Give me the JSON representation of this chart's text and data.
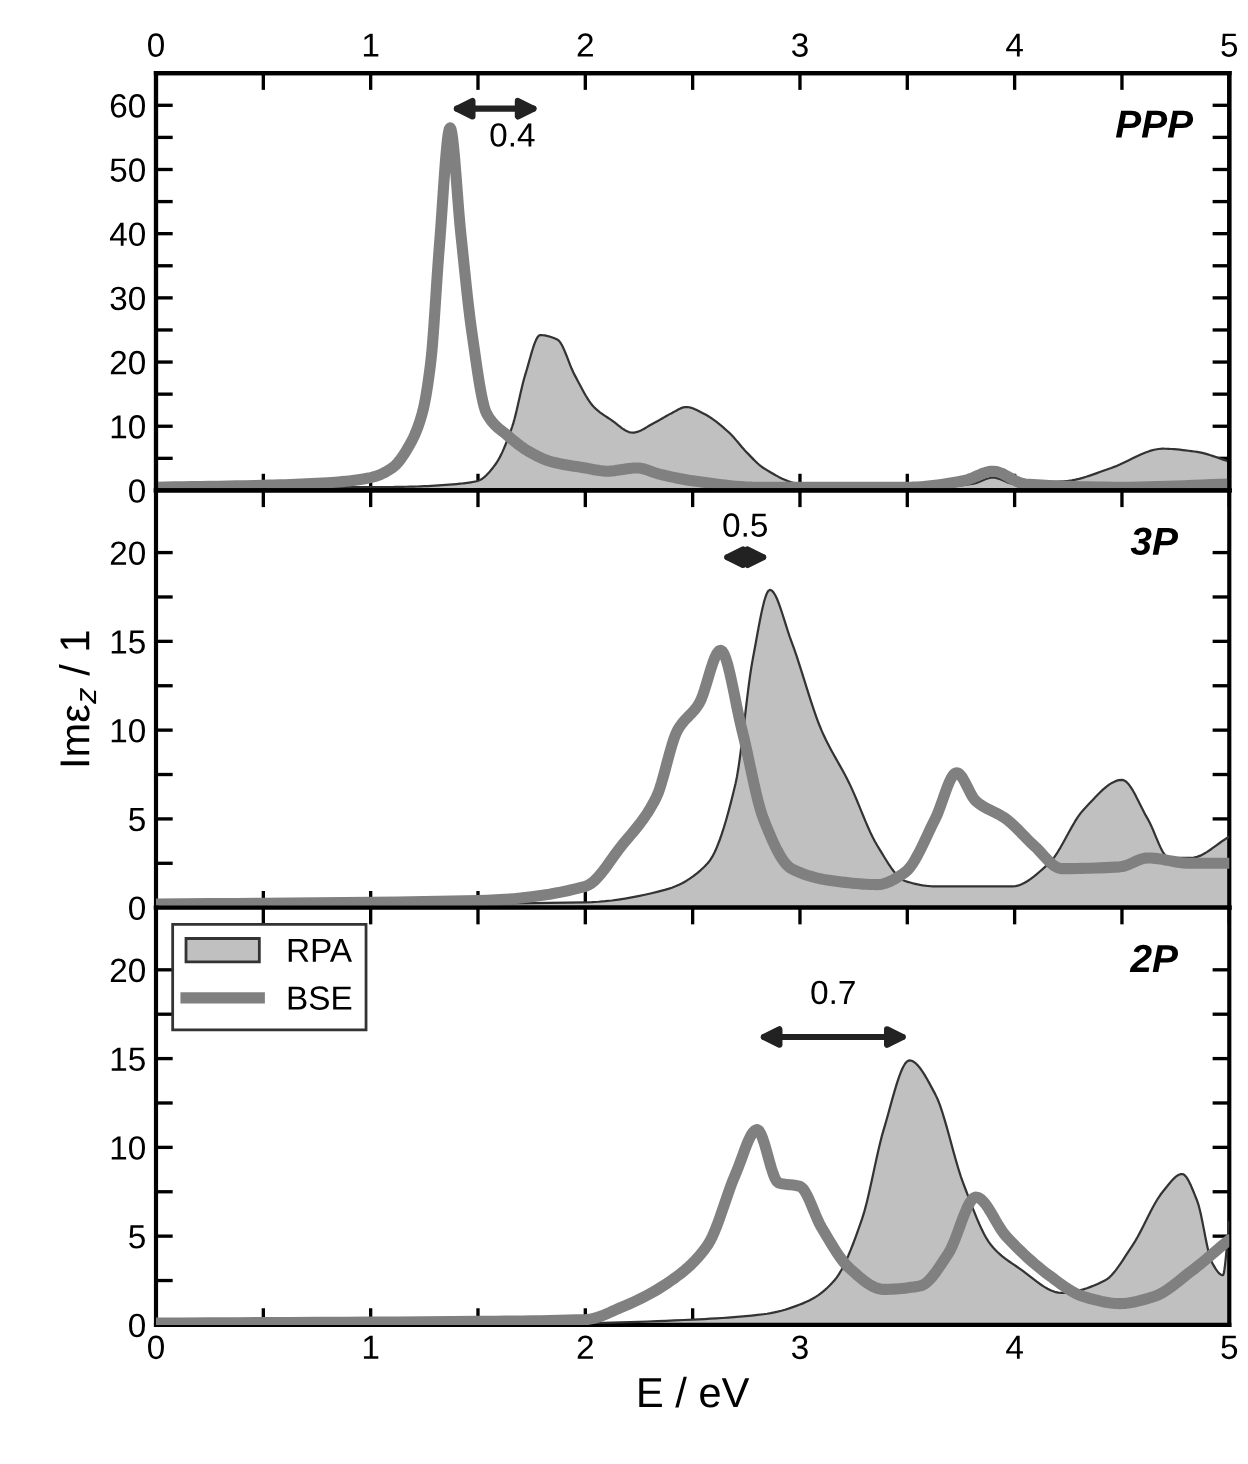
{
  "chart_data": [
    {
      "type": "area",
      "xlim": [
        0,
        5
      ],
      "ylim": [
        0,
        65
      ],
      "x2lim": [
        0,
        5
      ],
      "x2ticks": [
        0,
        {
          "value": 0.5,
          "label": null
        },
        1,
        {
          "value": 1.5,
          "label": null
        },
        2,
        {
          "value": 2.5,
          "label": null
        },
        3,
        {
          "value": 3.5,
          "label": null
        },
        4,
        {
          "value": 4.5,
          "label": null
        },
        5
      ],
      "xticks": [
        {
          "value": 0,
          "label": null
        },
        {
          "value": 0.5,
          "label": null
        },
        {
          "value": 1,
          "label": null
        },
        {
          "value": 1.5,
          "label": null
        },
        {
          "value": 2,
          "label": null
        },
        {
          "value": 2.5,
          "label": null
        },
        {
          "value": 3,
          "label": null
        },
        {
          "value": 3.5,
          "label": null
        },
        {
          "value": 4,
          "label": null
        },
        {
          "value": 4.5,
          "label": null
        },
        {
          "value": 5,
          "label": null
        }
      ],
      "yticks": [
        0,
        {
          "value": 5,
          "label": null
        },
        10,
        {
          "value": 15,
          "label": null
        },
        20,
        {
          "value": 25,
          "label": null
        },
        30,
        {
          "value": 35,
          "label": null
        },
        40,
        {
          "value": 45,
          "label": null
        },
        50,
        {
          "value": 55,
          "label": null
        },
        60
      ],
      "tick_labels": "y",
      "grid": false,
      "legend": false,
      "annotations": [
        "PPP",
        "0.4"
      ],
      "series": [
        {
          "color": "#c0c0c0",
          "x": [
            0,
            0.5,
            1.0,
            1.2,
            1.4,
            1.5,
            1.58,
            1.66,
            1.72,
            1.79,
            1.87,
            1.95,
            2.04,
            2.12,
            2.22,
            2.32,
            2.4,
            2.47,
            2.55,
            2.67,
            2.75,
            2.83,
            3.0,
            3.3,
            3.6,
            3.8,
            3.9,
            4.0,
            4.25,
            4.45,
            4.69,
            4.85,
            5.0
          ],
          "values": [
            0.5,
            0.5,
            0.5,
            0.6,
            1.0,
            1.5,
            4,
            10,
            18,
            24.2,
            23.5,
            18,
            13,
            11,
            9,
            10.5,
            12,
            13,
            12,
            9,
            6,
            3.5,
            1,
            0.5,
            0.5,
            1,
            2,
            1,
            1.5,
            3.5,
            6.5,
            6,
            4.5
          ]
        },
        {
          "type": "line",
          "color": "#808080",
          "x": [
            0,
            0.5,
            0.8,
            1.0,
            1.1,
            1.18,
            1.24,
            1.28,
            1.32,
            1.37,
            1.42,
            1.47,
            1.54,
            1.64,
            1.74,
            1.84,
            2.0,
            2.1,
            2.24,
            2.35,
            2.5,
            2.8,
            3.5,
            3.76,
            3.9,
            4.05,
            4.5,
            5.0
          ],
          "values": [
            0.5,
            0.8,
            1.2,
            2,
            3.5,
            7,
            12,
            20,
            38,
            56.5,
            40,
            25,
            12,
            8.5,
            6,
            4.5,
            3.5,
            3,
            3.5,
            2.5,
            1.5,
            0.5,
            0.5,
            1.5,
            3,
            1,
            0.5,
            1
          ]
        }
      ]
    },
    {
      "type": "area",
      "xlim": [
        0,
        5
      ],
      "ylim": [
        0,
        23.5
      ],
      "ylabel": "Imε$_{z}$ / 1",
      "xticks": [
        {
          "value": 0,
          "label": null
        },
        {
          "value": 0.5,
          "label": null
        },
        {
          "value": 1,
          "label": null
        },
        {
          "value": 1.5,
          "label": null
        },
        {
          "value": 2,
          "label": null
        },
        {
          "value": 2.5,
          "label": null
        },
        {
          "value": 3,
          "label": null
        },
        {
          "value": 3.5,
          "label": null
        },
        {
          "value": 4,
          "label": null
        },
        {
          "value": 4.5,
          "label": null
        },
        {
          "value": 5,
          "label": null
        }
      ],
      "yticks": [
        0,
        {
          "value": 2.5,
          "label": null
        },
        5,
        {
          "value": 7.5,
          "label": null
        },
        10,
        {
          "value": 12.5,
          "label": null
        },
        15,
        {
          "value": 17.5,
          "label": null
        },
        20
      ],
      "tick_labels": "y",
      "grid": false,
      "legend": false,
      "annotations": [
        "3P",
        "0.5"
      ],
      "series": [
        {
          "color": "#c0c0c0",
          "x": [
            0,
            1.0,
            2.0,
            2.37,
            2.57,
            2.7,
            2.78,
            2.86,
            2.96,
            3.1,
            3.23,
            3.36,
            3.49,
            3.63,
            3.99,
            4.16,
            4.32,
            4.5,
            4.62,
            4.72,
            4.82,
            5.0
          ],
          "values": [
            0.2,
            0.2,
            0.3,
            1,
            2.5,
            7,
            14,
            17.9,
            15,
            10,
            7,
            3.5,
            1.5,
            1.2,
            1.2,
            2.5,
            5.5,
            7.2,
            5,
            2.8,
            2.8,
            4
          ]
        },
        {
          "type": "line",
          "color": "#808080",
          "x": [
            0,
            1.5,
            2.0,
            2.17,
            2.33,
            2.43,
            2.53,
            2.63,
            2.73,
            2.83,
            2.96,
            3.16,
            3.36,
            3.49,
            3.63,
            3.73,
            3.82,
            3.96,
            4.09,
            4.22,
            4.49,
            4.62,
            4.82,
            5.0
          ],
          "values": [
            0.2,
            0.4,
            1.2,
            3.5,
            6.2,
            10,
            11.5,
            14.5,
            10,
            5,
            2.2,
            1.5,
            1.3,
            2,
            5,
            7.6,
            6,
            5,
            3.5,
            2.2,
            2.3,
            2.8,
            2.5,
            2.5
          ]
        }
      ]
    },
    {
      "type": "area",
      "xlim": [
        0,
        5
      ],
      "ylim": [
        0,
        23.5
      ],
      "xlabel": "E / eV",
      "xticks": [
        0,
        {
          "value": 0.5,
          "label": null
        },
        1,
        {
          "value": 1.5,
          "label": null
        },
        2,
        {
          "value": 2.5,
          "label": null
        },
        3,
        {
          "value": 3.5,
          "label": null
        },
        4,
        {
          "value": 4.5,
          "label": null
        },
        5
      ],
      "yticks": [
        0,
        {
          "value": 2.5,
          "label": null
        },
        5,
        {
          "value": 7.5,
          "label": null
        },
        10,
        {
          "value": 12.5,
          "label": null
        },
        15,
        {
          "value": 17.5,
          "label": null
        },
        20
      ],
      "grid": false,
      "legend": "top left",
      "annotations": [
        "2P",
        "0.7"
      ],
      "series": [
        {
          "name": "RPA",
          "color": "#c0c0c0",
          "x": [
            0,
            1.0,
            2.0,
            2.5,
            2.83,
            3.03,
            3.16,
            3.29,
            3.39,
            3.51,
            3.63,
            3.76,
            3.89,
            4.02,
            4.22,
            4.42,
            4.55,
            4.69,
            4.78,
            4.85,
            4.92,
            4.97,
            5.0
          ],
          "values": [
            0,
            0,
            0.1,
            0.3,
            0.6,
            1.3,
            2.5,
            6,
            11,
            14.9,
            13,
            8,
            4.5,
            3.2,
            1.8,
            2.5,
            4.5,
            7.5,
            8.5,
            7,
            3.5,
            2.8,
            5.8
          ]
        },
        {
          "name": "BSE",
          "type": "line",
          "color": "#808080",
          "x": [
            0,
            1.5,
            2.0,
            2.17,
            2.4,
            2.57,
            2.7,
            2.8,
            2.9,
            3.0,
            3.1,
            3.23,
            3.39,
            3.56,
            3.69,
            3.82,
            3.96,
            4.16,
            4.32,
            4.49,
            4.65,
            4.82,
            5.0
          ],
          "values": [
            0.1,
            0.2,
            0.3,
            1,
            2.5,
            4.5,
            8.5,
            11,
            8,
            7.8,
            5.5,
            3.2,
            2,
            2.2,
            4,
            7.2,
            5,
            2.8,
            1.6,
            1.2,
            1.6,
            3,
            4.8
          ]
        }
      ]
    }
  ]
}
